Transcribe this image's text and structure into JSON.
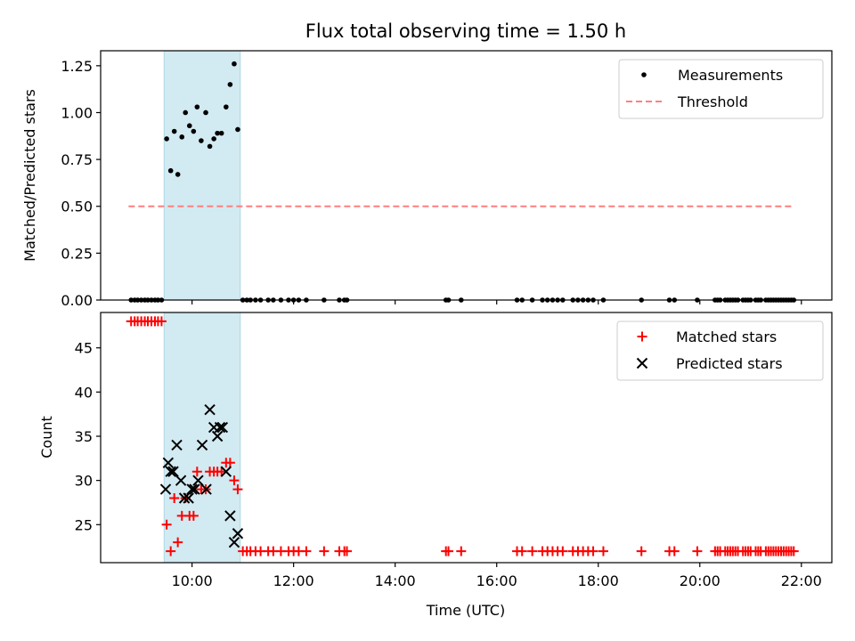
{
  "figure": {
    "title": "Flux total observing time = 1.50 h",
    "xlabel": "Time (UTC)"
  },
  "colors": {
    "band": "#add8e6",
    "threshold": "#ff7f7f",
    "matched": "#ff0000",
    "predicted": "#000000",
    "measurement": "#000000"
  },
  "chart_data": [
    {
      "type": "scatter",
      "ylabel": "Matched/Predicted stars",
      "xlim": [
        8.2,
        22.6
      ],
      "ylim": [
        0,
        1.33
      ],
      "grid": false,
      "legend_placement": "top-right",
      "shaded_interval": [
        9.45,
        10.95
      ],
      "yticks": [
        0.0,
        0.25,
        0.5,
        0.75,
        1.0,
        1.25
      ],
      "ytick_labels": [
        "0.00",
        "0.25",
        "0.50",
        "0.75",
        "1.00",
        "1.25"
      ],
      "series": [
        {
          "name": "Measurements",
          "marker": "dot",
          "x": [
            8.8,
            8.87,
            8.93,
            9.0,
            9.07,
            9.13,
            9.2,
            9.27,
            9.33,
            9.4,
            9.5,
            9.58,
            9.65,
            9.72,
            9.8,
            9.87,
            9.95,
            10.03,
            10.1,
            10.18,
            10.27,
            10.35,
            10.43,
            10.5,
            10.58,
            10.67,
            10.75,
            10.83,
            10.9,
            11.0,
            11.08,
            11.15,
            11.25,
            11.35,
            11.5,
            11.6,
            11.75,
            11.9,
            12.0,
            12.1,
            12.25,
            12.6,
            12.9,
            13.0,
            13.05,
            15.0,
            15.05,
            15.3,
            16.4,
            16.5,
            16.7,
            16.9,
            17.0,
            17.1,
            17.2,
            17.3,
            17.5,
            17.6,
            17.7,
            17.8,
            17.9,
            18.1,
            18.85,
            19.4,
            19.5,
            19.95,
            20.3,
            20.35,
            20.4,
            20.5,
            20.55,
            20.6,
            20.65,
            20.7,
            20.75,
            20.85,
            20.9,
            20.95,
            21.0,
            21.1,
            21.15,
            21.2,
            21.3,
            21.35,
            21.4,
            21.45,
            21.5,
            21.55,
            21.6,
            21.65,
            21.7,
            21.75,
            21.8,
            21.85
          ],
          "y": [
            0,
            0,
            0,
            0,
            0,
            0,
            0,
            0,
            0,
            0,
            0.86,
            0.69,
            0.9,
            0.67,
            0.87,
            1.0,
            0.93,
            0.9,
            1.03,
            0.85,
            1.0,
            0.82,
            0.86,
            0.89,
            0.89,
            1.03,
            1.15,
            1.26,
            0.91,
            0,
            0,
            0,
            0,
            0,
            0,
            0,
            0,
            0,
            0,
            0,
            0,
            0,
            0,
            0,
            0,
            0,
            0,
            0,
            0,
            0,
            0,
            0,
            0,
            0,
            0,
            0,
            0,
            0,
            0,
            0,
            0,
            0,
            0,
            0,
            0,
            0,
            0,
            0,
            0,
            0,
            0,
            0,
            0,
            0,
            0,
            0,
            0,
            0,
            0,
            0,
            0,
            0,
            0,
            0,
            0,
            0,
            0,
            0,
            0,
            0,
            0,
            0,
            0,
            0
          ]
        },
        {
          "name": "Threshold",
          "marker": "dashed-line",
          "x": [
            8.75,
            21.85
          ],
          "y": [
            0.5,
            0.5
          ]
        }
      ]
    },
    {
      "type": "scatter",
      "ylabel": "Count",
      "xlabel": "Time (UTC)",
      "xlim": [
        8.2,
        22.6
      ],
      "ylim": [
        20.7,
        49.0
      ],
      "grid": false,
      "legend_placement": "top-right",
      "shaded_interval": [
        9.45,
        10.95
      ],
      "yticks": [
        25,
        30,
        35,
        40,
        45
      ],
      "ytick_labels": [
        "25",
        "30",
        "35",
        "40",
        "45"
      ],
      "xticks": [
        10,
        12,
        14,
        16,
        18,
        20,
        22
      ],
      "xtick_labels": [
        "10:00",
        "12:00",
        "14:00",
        "16:00",
        "18:00",
        "20:00",
        "22:00"
      ],
      "series": [
        {
          "name": "Matched stars",
          "marker": "plus",
          "x": [
            8.8,
            8.87,
            8.93,
            9.0,
            9.07,
            9.13,
            9.2,
            9.27,
            9.33,
            9.4,
            9.5,
            9.58,
            9.65,
            9.72,
            9.8,
            9.87,
            9.95,
            10.03,
            10.1,
            10.18,
            10.27,
            10.35,
            10.43,
            10.5,
            10.58,
            10.67,
            10.75,
            10.83,
            10.9,
            11.0,
            11.08,
            11.15,
            11.25,
            11.35,
            11.5,
            11.6,
            11.75,
            11.9,
            12.0,
            12.1,
            12.25,
            12.6,
            12.9,
            13.0,
            13.05,
            15.0,
            15.05,
            15.3,
            16.4,
            16.5,
            16.7,
            16.9,
            17.0,
            17.1,
            17.2,
            17.3,
            17.5,
            17.6,
            17.7,
            17.8,
            17.9,
            18.1,
            18.85,
            19.4,
            19.5,
            19.95,
            20.3,
            20.35,
            20.4,
            20.5,
            20.55,
            20.6,
            20.65,
            20.7,
            20.75,
            20.85,
            20.9,
            20.95,
            21.0,
            21.1,
            21.15,
            21.2,
            21.3,
            21.35,
            21.4,
            21.45,
            21.5,
            21.55,
            21.6,
            21.65,
            21.7,
            21.75,
            21.8,
            21.85
          ],
          "y": [
            48,
            48,
            48,
            48,
            48,
            48,
            48,
            48,
            48,
            48,
            25,
            22,
            28,
            23,
            26,
            28,
            26,
            26,
            31,
            29,
            29,
            31,
            31,
            31,
            31,
            32,
            32,
            30,
            29,
            22,
            22,
            22,
            22,
            22,
            22,
            22,
            22,
            22,
            22,
            22,
            22,
            22,
            22,
            22,
            22,
            22,
            22,
            22,
            22,
            22,
            22,
            22,
            22,
            22,
            22,
            22,
            22,
            22,
            22,
            22,
            22,
            22,
            22,
            22,
            22,
            22,
            22,
            22,
            22,
            22,
            22,
            22,
            22,
            22,
            22,
            22,
            22,
            22,
            22,
            22,
            22,
            22,
            22,
            22,
            22,
            22,
            22,
            22,
            22,
            22,
            22,
            22,
            22,
            22
          ]
        },
        {
          "name": "Predicted stars",
          "marker": "x",
          "x": [
            9.48,
            9.53,
            9.58,
            9.63,
            9.7,
            9.78,
            9.85,
            9.93,
            10.0,
            10.05,
            10.12,
            10.2,
            10.28,
            10.35,
            10.43,
            10.5,
            10.55,
            10.6,
            10.67,
            10.75,
            10.83,
            10.9
          ],
          "y": [
            29,
            32,
            31,
            31,
            34,
            30,
            28,
            28,
            29,
            29,
            30,
            34,
            29,
            38,
            36,
            35,
            36,
            36,
            31,
            26,
            23,
            24
          ]
        }
      ]
    }
  ]
}
